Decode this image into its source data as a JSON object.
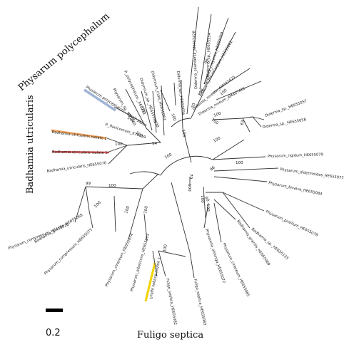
{
  "group_labels": {
    "physarum_polycephalum": "Physarum polycephalum",
    "badhamia_utricularis": "Badhamia utricularis",
    "fuligo_septica": "Fuligo septica"
  },
  "scale_bar": {
    "label": "0.2"
  },
  "highlight_colors": {
    "blue": "#9fb4d6",
    "orange": "#f0a35e",
    "red": "#e05a5a",
    "yellow": "#f2d200"
  },
  "leaves": [
    "Physarum polycephalum - Strain Japan",
    "Physarum_sp._VD1160",
    "P._polycephalum._X60211",
    "Didymium_sp._HE655595",
    "Didymium_iridis_HE655063",
    "Diderma_sp._HE655656",
    "Diderma_saundersii_AM407428",
    "Diderma_sp._HE655554",
    "Diderma_meyerae_HE655059",
    "Diderma_microcarpum_HE655062",
    "Diderma_niveum_AM407425",
    "Diderma_niveum_AM407426",
    "Diderma_sp._HE655057",
    "Diderma_sp._HE655058",
    "Physarum_rigidum_HE655079",
    "Physarum_didermoides_HE655077",
    "Physarum_bivalve_HE655084",
    "Physarum_pusillum_HE655078",
    "Badhamia_sp._HE655133",
    "Badhamia_gracilis_HE655069",
    "Physarum_cinereum_HE655085",
    "Physarella_oblonga_HE655072",
    "Fuligo_septica_HE655083",
    "Fuligo_septica_HE655082",
    "Fuligo septica isolate 1",
    "Physarum_albescens_HE655073",
    "Physarum_cinereum_HE655074",
    "Physarum_compressum_HE655075",
    "Badhamia_gracilis_HE655068",
    "Physarum_compressum_HE655076",
    "Badhamia_utricularis_HE655070",
    "Badhamia utricularis isolate 1",
    "Badhamia utricularis isolate 2",
    "P._flavicomum_X78859"
  ],
  "bootstrap": [
    "100",
    "100",
    "99",
    "100",
    "100",
    "100",
    "100",
    "100",
    "100",
    "94",
    "100",
    "100",
    "100",
    "100",
    "70",
    "100",
    "98",
    "100",
    "63",
    "100",
    "100",
    "100",
    "70",
    "100",
    "96",
    "100",
    "100",
    "100",
    "60",
    "100"
  ]
}
